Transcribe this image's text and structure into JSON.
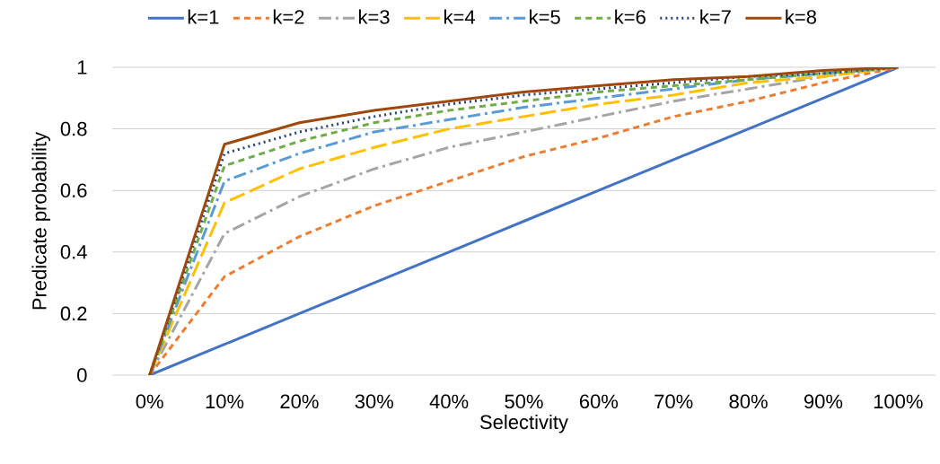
{
  "chart_data": {
    "type": "line",
    "xlabel": "Selectivity",
    "ylabel": "Predicate probability",
    "categories": [
      "0%",
      "10%",
      "20%",
      "30%",
      "40%",
      "50%",
      "60%",
      "70%",
      "80%",
      "90%",
      "100%"
    ],
    "ylim": [
      0,
      1
    ],
    "yticks": [
      0,
      0.2,
      0.4,
      0.6,
      0.8,
      1
    ],
    "grid": "y",
    "legend": "top",
    "marker": "none",
    "series": [
      {
        "name": "k=1",
        "color": "#4472c4",
        "line_style": "solid",
        "values": [
          0,
          0.1,
          0.2,
          0.3,
          0.4,
          0.5,
          0.6,
          0.7,
          0.8,
          0.9,
          1
        ]
      },
      {
        "name": "k=2",
        "color": "#ed7d31",
        "line_style": "dashed",
        "values": [
          0,
          0.32,
          0.45,
          0.55,
          0.63,
          0.71,
          0.77,
          0.84,
          0.89,
          0.95,
          1
        ]
      },
      {
        "name": "k=3",
        "color": "#a5a5a5",
        "line_style": "dashdot",
        "values": [
          0,
          0.46,
          0.58,
          0.67,
          0.74,
          0.79,
          0.84,
          0.89,
          0.93,
          0.97,
          1
        ]
      },
      {
        "name": "k=4",
        "color": "#ffc000",
        "line_style": "longdash",
        "values": [
          0,
          0.56,
          0.67,
          0.74,
          0.8,
          0.84,
          0.88,
          0.91,
          0.95,
          0.97,
          1
        ]
      },
      {
        "name": "k=5",
        "color": "#5b9bd5",
        "line_style": "dashdot",
        "values": [
          0,
          0.63,
          0.72,
          0.79,
          0.83,
          0.87,
          0.9,
          0.93,
          0.96,
          0.98,
          1
        ]
      },
      {
        "name": "k=6",
        "color": "#70ad47",
        "line_style": "dashed",
        "values": [
          0,
          0.68,
          0.76,
          0.82,
          0.86,
          0.89,
          0.92,
          0.94,
          0.96,
          0.98,
          1
        ]
      },
      {
        "name": "k=7",
        "color": "#264478",
        "line_style": "dotted",
        "values": [
          0,
          0.72,
          0.79,
          0.84,
          0.88,
          0.91,
          0.93,
          0.95,
          0.97,
          0.98,
          1
        ]
      },
      {
        "name": "k=8",
        "color": "#9e480e",
        "line_style": "solid",
        "values": [
          0,
          0.75,
          0.82,
          0.86,
          0.89,
          0.92,
          0.94,
          0.96,
          0.97,
          0.99,
          1
        ]
      }
    ]
  }
}
